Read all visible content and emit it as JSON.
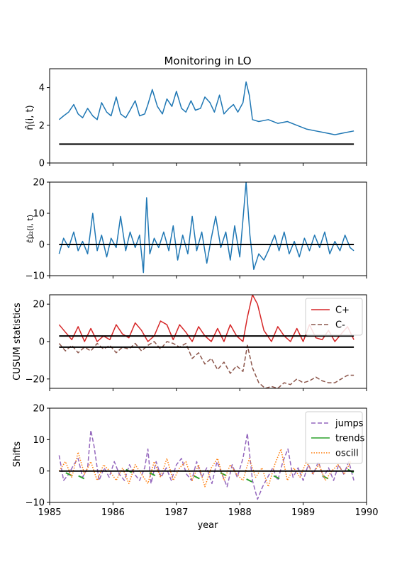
{
  "chart_data": [
    {
      "type": "line",
      "title": "Monitoring in LO",
      "ylabel": "η̂(i, t)",
      "ylim": [
        0,
        5
      ],
      "yticks": [
        0,
        2,
        4
      ],
      "xlim": [
        1985,
        1990
      ],
      "series": [
        {
          "color": "#1f77b4",
          "x": [
            1985.15,
            1985.22,
            1985.3,
            1985.38,
            1985.45,
            1985.52,
            1985.6,
            1985.68,
            1985.75,
            1985.82,
            1985.9,
            1985.97,
            1986.05,
            1986.12,
            1986.2,
            1986.27,
            1986.35,
            1986.42,
            1986.5,
            1986.55,
            1986.62,
            1986.7,
            1986.78,
            1986.85,
            1986.93,
            1987.0,
            1987.08,
            1987.15,
            1987.23,
            1987.3,
            1987.38,
            1987.45,
            1987.53,
            1987.6,
            1987.68,
            1987.75,
            1987.83,
            1987.9,
            1987.97,
            1988.05,
            1988.1,
            1988.15,
            1988.2,
            1988.3,
            1988.45,
            1988.6,
            1988.75,
            1988.9,
            1989.05,
            1989.2,
            1989.35,
            1989.5,
            1989.65,
            1989.8
          ],
          "values": [
            2.3,
            2.5,
            2.7,
            3.1,
            2.6,
            2.4,
            2.9,
            2.5,
            2.3,
            3.2,
            2.7,
            2.5,
            3.5,
            2.6,
            2.4,
            2.8,
            3.3,
            2.5,
            2.6,
            3.1,
            3.9,
            3.0,
            2.6,
            3.4,
            3.0,
            3.8,
            2.9,
            2.7,
            3.3,
            2.8,
            2.9,
            3.5,
            3.2,
            2.7,
            3.6,
            2.6,
            2.9,
            3.1,
            2.7,
            3.2,
            4.3,
            3.6,
            2.3,
            2.2,
            2.3,
            2.1,
            2.2,
            2.0,
            1.8,
            1.7,
            1.6,
            1.5,
            1.6,
            1.7
          ]
        },
        {
          "color": "#000000",
          "x": [
            1985.15,
            1989.8
          ],
          "values": [
            1,
            1
          ]
        }
      ]
    },
    {
      "type": "line",
      "ylabel": "ε̂μ̂₂(i, t)",
      "ylim": [
        -10,
        20
      ],
      "yticks": [
        -10,
        0,
        10,
        20
      ],
      "xlim": [
        1985,
        1990
      ],
      "series": [
        {
          "color": "#1f77b4",
          "x": [
            1985.15,
            1985.22,
            1985.3,
            1985.38,
            1985.45,
            1985.52,
            1985.6,
            1985.68,
            1985.75,
            1985.82,
            1985.9,
            1985.97,
            1986.05,
            1986.12,
            1986.2,
            1986.27,
            1986.35,
            1986.42,
            1986.48,
            1986.53,
            1986.58,
            1986.65,
            1986.72,
            1986.8,
            1986.88,
            1986.95,
            1987.02,
            1987.1,
            1987.18,
            1987.25,
            1987.32,
            1987.4,
            1987.48,
            1987.55,
            1987.62,
            1987.7,
            1987.78,
            1987.85,
            1987.92,
            1988.0,
            1988.05,
            1988.1,
            1988.16,
            1988.22,
            1988.3,
            1988.38,
            1988.45,
            1988.55,
            1988.62,
            1988.7,
            1988.78,
            1988.86,
            1988.94,
            1989.02,
            1989.1,
            1989.18,
            1989.26,
            1989.34,
            1989.42,
            1989.5,
            1989.58,
            1989.66,
            1989.74,
            1989.8
          ],
          "values": [
            -3,
            2,
            -1,
            4,
            -2,
            1,
            -3,
            10,
            -2,
            3,
            -4,
            2,
            -1,
            9,
            -2,
            4,
            -1,
            3,
            -9,
            15,
            -3,
            2,
            -1,
            4,
            -2,
            6,
            -5,
            3,
            -3,
            9,
            -2,
            4,
            -6,
            2,
            9,
            -1,
            4,
            -5,
            6,
            -4,
            8,
            20,
            3,
            -8,
            -3,
            -5,
            -2,
            3,
            -2,
            4,
            -3,
            1,
            -4,
            2,
            -2,
            3,
            -1,
            4,
            -3,
            1,
            -2,
            3,
            -1,
            -2
          ]
        },
        {
          "color": "#000000",
          "x": [
            1985.15,
            1989.8
          ],
          "values": [
            0,
            0
          ]
        }
      ]
    },
    {
      "type": "line",
      "ylabel": "CUSUM statistics",
      "ylim": [
        -25,
        25
      ],
      "yticks": [
        -20,
        0,
        20
      ],
      "xlim": [
        1985,
        1990
      ],
      "legend": "top-right",
      "series": [
        {
          "name": "C+",
          "color": "#d62728",
          "style": "solid",
          "x": [
            1985.15,
            1985.25,
            1985.35,
            1985.45,
            1985.55,
            1985.65,
            1985.75,
            1985.85,
            1985.95,
            1986.05,
            1986.15,
            1986.25,
            1986.35,
            1986.45,
            1986.55,
            1986.65,
            1986.75,
            1986.85,
            1986.95,
            1987.05,
            1987.15,
            1987.25,
            1987.35,
            1987.45,
            1987.55,
            1987.65,
            1987.75,
            1987.85,
            1987.95,
            1988.05,
            1988.12,
            1988.2,
            1988.28,
            1988.38,
            1988.5,
            1988.6,
            1988.7,
            1988.8,
            1988.9,
            1989.0,
            1989.1,
            1989.2,
            1989.3,
            1989.4,
            1989.5,
            1989.6,
            1989.7,
            1989.8
          ],
          "values": [
            9,
            5,
            1,
            8,
            0,
            7,
            0,
            3,
            1,
            9,
            4,
            2,
            10,
            6,
            0,
            3,
            11,
            9,
            1,
            9,
            5,
            0,
            8,
            3,
            0,
            7,
            0,
            9,
            3,
            0,
            13,
            25,
            20,
            6,
            0,
            8,
            3,
            0,
            7,
            0,
            9,
            2,
            1,
            6,
            0,
            4,
            8,
            1
          ]
        },
        {
          "name": "C-",
          "color": "#8c564b",
          "style": "dashed",
          "x": [
            1985.15,
            1985.25,
            1985.35,
            1985.45,
            1985.55,
            1985.65,
            1985.75,
            1985.85,
            1985.95,
            1986.05,
            1986.15,
            1986.25,
            1986.35,
            1986.45,
            1986.55,
            1986.65,
            1986.75,
            1986.85,
            1986.95,
            1987.05,
            1987.15,
            1987.25,
            1987.35,
            1987.45,
            1987.55,
            1987.65,
            1987.75,
            1987.85,
            1987.95,
            1988.05,
            1988.12,
            1988.2,
            1988.3,
            1988.4,
            1988.5,
            1988.6,
            1988.7,
            1988.8,
            1988.9,
            1989.0,
            1989.1,
            1989.2,
            1989.3,
            1989.4,
            1989.5,
            1989.6,
            1989.7,
            1989.8
          ],
          "values": [
            -1,
            -5,
            -2,
            -6,
            -3,
            -5,
            -1,
            -4,
            -2,
            -6,
            -3,
            -4,
            -1,
            -5,
            -2,
            0,
            -4,
            0,
            -1,
            -3,
            -1,
            -9,
            -6,
            -12,
            -9,
            -15,
            -11,
            -17,
            -13,
            -16,
            -2,
            -14,
            -22,
            -25,
            -24,
            -25,
            -22,
            -23,
            -20,
            -22,
            -21,
            -19,
            -21,
            -22,
            -22,
            -20,
            -18,
            -18
          ]
        },
        {
          "color": "#000000",
          "style": "solid",
          "x": [
            1985.15,
            1989.8
          ],
          "values": [
            3,
            3
          ]
        },
        {
          "color": "#000000",
          "style": "solid",
          "x": [
            1985.15,
            1989.8
          ],
          "values": [
            -3,
            -3
          ]
        }
      ]
    },
    {
      "type": "line",
      "ylabel": "Shifts",
      "xlabel": "year",
      "ylim": [
        -10,
        20
      ],
      "yticks": [
        -10,
        0,
        10,
        20
      ],
      "xlim": [
        1985,
        1990
      ],
      "xticks": [
        1985,
        1986,
        1987,
        1988,
        1989,
        1990
      ],
      "legend": "top-right",
      "series": [
        {
          "name": "jumps",
          "color": "#9467bd",
          "style": "dashed",
          "x": [
            1985.15,
            1985.22,
            1985.3,
            1985.38,
            1985.45,
            1985.52,
            1985.6,
            1985.65,
            1985.7,
            1985.78,
            1985.86,
            1985.94,
            1986.02,
            1986.1,
            1986.18,
            1986.26,
            1986.34,
            1986.42,
            1986.5,
            1986.55,
            1986.6,
            1986.68,
            1986.76,
            1986.84,
            1986.92,
            1987.0,
            1987.08,
            1987.16,
            1987.24,
            1987.32,
            1987.4,
            1987.48,
            1987.56,
            1987.64,
            1987.72,
            1987.8,
            1987.88,
            1987.96,
            1988.05,
            1988.12,
            1988.2,
            1988.28,
            1988.36,
            1988.44,
            1988.52,
            1988.6,
            1988.68,
            1988.76,
            1988.84,
            1988.92,
            1989.0,
            1989.08,
            1989.16,
            1989.24,
            1989.32,
            1989.4,
            1989.48,
            1989.56,
            1989.64,
            1989.72,
            1989.8
          ],
          "values": [
            5,
            -3,
            -1,
            2,
            4,
            -2,
            1,
            13,
            8,
            -3,
            1,
            -2,
            3,
            -1,
            -3,
            2,
            -1,
            -3,
            1,
            7,
            -4,
            3,
            -2,
            1,
            -3,
            2,
            4,
            -1,
            -3,
            3,
            -2,
            1,
            -4,
            3,
            -1,
            -5,
            2,
            -2,
            4,
            12,
            -3,
            -9,
            -5,
            -2,
            1,
            -3,
            3,
            7,
            -2,
            1,
            -3,
            2,
            -1,
            3,
            -2,
            1,
            -3,
            2,
            -1,
            3,
            -3
          ]
        },
        {
          "name": "trends",
          "color": "#2ca02c",
          "style": "solid",
          "x": [
            1985.3,
            1985.5,
            1986.25,
            1986.62,
            1987.32,
            1987.74,
            1988.15,
            1988.58,
            1989.35,
            1989.75
          ],
          "values": [
            -1,
            -2,
            0,
            -1,
            -2,
            -1,
            -3,
            -2,
            -2,
            0
          ],
          "segmented": true
        },
        {
          "name": "oscill",
          "color": "#ff7f0e",
          "style": "dotted",
          "x": [
            1985.15,
            1985.25,
            1985.35,
            1985.45,
            1985.55,
            1985.65,
            1985.75,
            1985.85,
            1985.95,
            1986.05,
            1986.15,
            1986.25,
            1986.35,
            1986.45,
            1986.55,
            1986.65,
            1986.75,
            1986.85,
            1986.95,
            1987.05,
            1987.15,
            1987.25,
            1987.35,
            1987.45,
            1987.55,
            1987.65,
            1987.75,
            1987.85,
            1987.95,
            1988.05,
            1988.15,
            1988.25,
            1988.35,
            1988.45,
            1988.55,
            1988.65,
            1988.75,
            1988.85,
            1988.95,
            1989.05,
            1989.15,
            1989.25,
            1989.35,
            1989.45,
            1989.55,
            1989.65,
            1989.75
          ],
          "values": [
            0,
            3,
            -2,
            6,
            -1,
            3,
            -3,
            2,
            0,
            -3,
            1,
            -4,
            2,
            -1,
            -4,
            3,
            -2,
            4,
            -3,
            1,
            3,
            -3,
            2,
            -5,
            1,
            4,
            -3,
            2,
            -1,
            -3,
            4,
            -2,
            1,
            -5,
            2,
            7,
            -3,
            1,
            -2,
            3,
            -1,
            2,
            -3,
            0,
            2,
            -1,
            3
          ]
        },
        {
          "color": "#000000",
          "style": "solid",
          "x": [
            1985.15,
            1989.8
          ],
          "values": [
            0,
            0
          ]
        }
      ]
    }
  ]
}
